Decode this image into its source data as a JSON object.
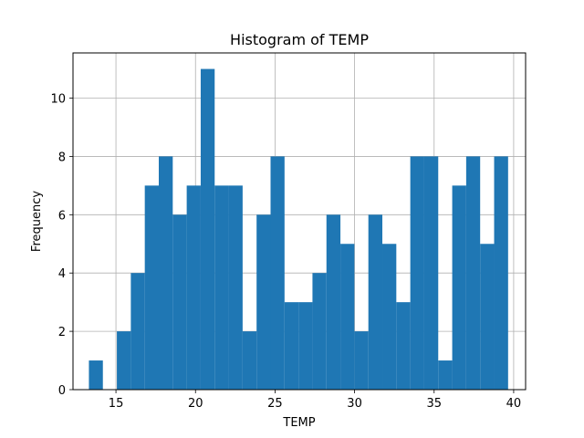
{
  "chart_data": {
    "type": "bar",
    "title": "Histogram of TEMP",
    "xlabel": "TEMP",
    "ylabel": "Frequency",
    "xlim": [
      12.3,
      40.75
    ],
    "ylim": [
      0,
      11.55
    ],
    "xticks": [
      15,
      20,
      25,
      30,
      35,
      40
    ],
    "yticks": [
      0,
      2,
      4,
      6,
      8,
      10
    ],
    "grid": true,
    "bar_color": "#1f77b4",
    "bin_edges": [
      13.3,
      14.178,
      15.057,
      15.935,
      16.813,
      17.692,
      18.57,
      19.448,
      20.327,
      21.205,
      22.083,
      22.962,
      23.84,
      24.718,
      25.597,
      26.475,
      27.353,
      28.232,
      29.11,
      29.988,
      30.867,
      31.745,
      32.623,
      33.502,
      34.38,
      35.258,
      36.137,
      37.015,
      37.893,
      38.772,
      39.65
    ],
    "counts": [
      1,
      0,
      2,
      4,
      7,
      8,
      6,
      7,
      11,
      7,
      7,
      2,
      6,
      8,
      3,
      3,
      4,
      6,
      5,
      2,
      6,
      5,
      3,
      8,
      8,
      1,
      7,
      8,
      5,
      8
    ]
  }
}
